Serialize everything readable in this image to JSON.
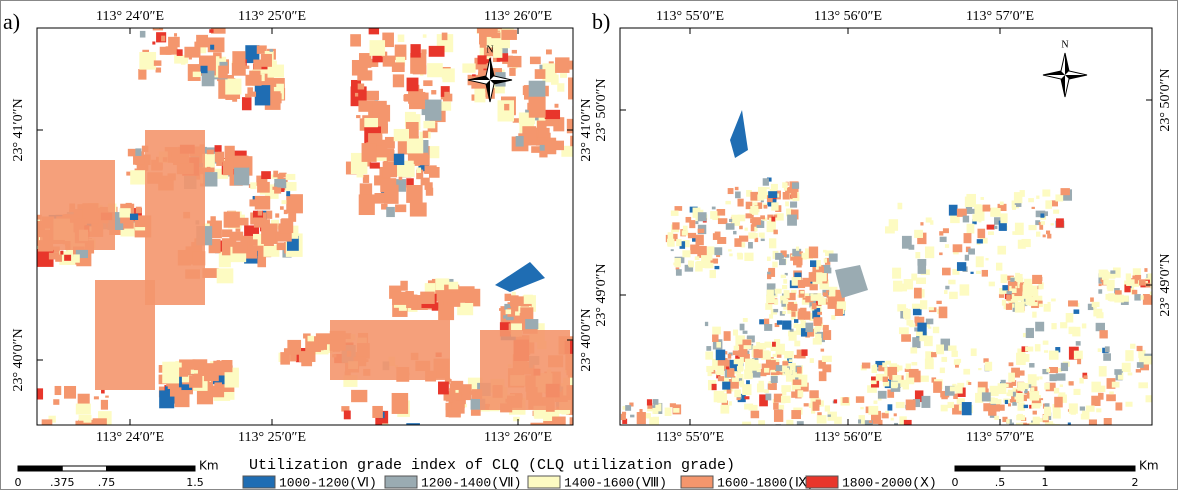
{
  "panels": [
    {
      "label": "a)",
      "top_ticks": [
        "113° 24′0″E",
        "113° 25′0″E",
        "113° 26′0″E"
      ],
      "bottom_ticks": [
        "113° 24′0″E",
        "113° 25′0″E",
        "113° 26′0″E"
      ],
      "left_ticks": [
        "23° 41′0″N",
        "23° 40′0″N"
      ],
      "right_ticks": [
        "23° 41′0″N",
        "23° 40′0″N"
      ],
      "north": "N",
      "scale": {
        "ticks": [
          "0",
          ".375",
          ".75",
          "1.5"
        ],
        "unit": "Km"
      }
    },
    {
      "label": "b)",
      "top_ticks": [
        "113° 55′0″E",
        "113° 56′0″E",
        "113° 57′0″E"
      ],
      "bottom_ticks": [
        "113° 55′0″E",
        "113° 56′0″E",
        "113° 57′0″E"
      ],
      "left_ticks": [
        "23° 50′0″N",
        "23° 49′0″N"
      ],
      "right_ticks": [
        "23° 50′0″N",
        "23° 49′0″N"
      ],
      "north": "N",
      "scale": {
        "ticks": [
          "0",
          ".5",
          "1",
          "2"
        ],
        "unit": "Km"
      }
    }
  ],
  "legend": {
    "title": "Utilization grade index of CLQ (CLQ utilization grade)",
    "items": [
      {
        "label": "1000-1200(Ⅵ)",
        "color": "#1f6db3"
      },
      {
        "label": "1200-1400(Ⅶ)",
        "color": "#9aabb2"
      },
      {
        "label": "1400-1600(Ⅷ)",
        "color": "#fdfbc2"
      },
      {
        "label": "1600-1800(Ⅸ)",
        "color": "#f4966d"
      },
      {
        "label": "1800-2000(Ⅹ)",
        "color": "#e8362b"
      }
    ]
  }
}
